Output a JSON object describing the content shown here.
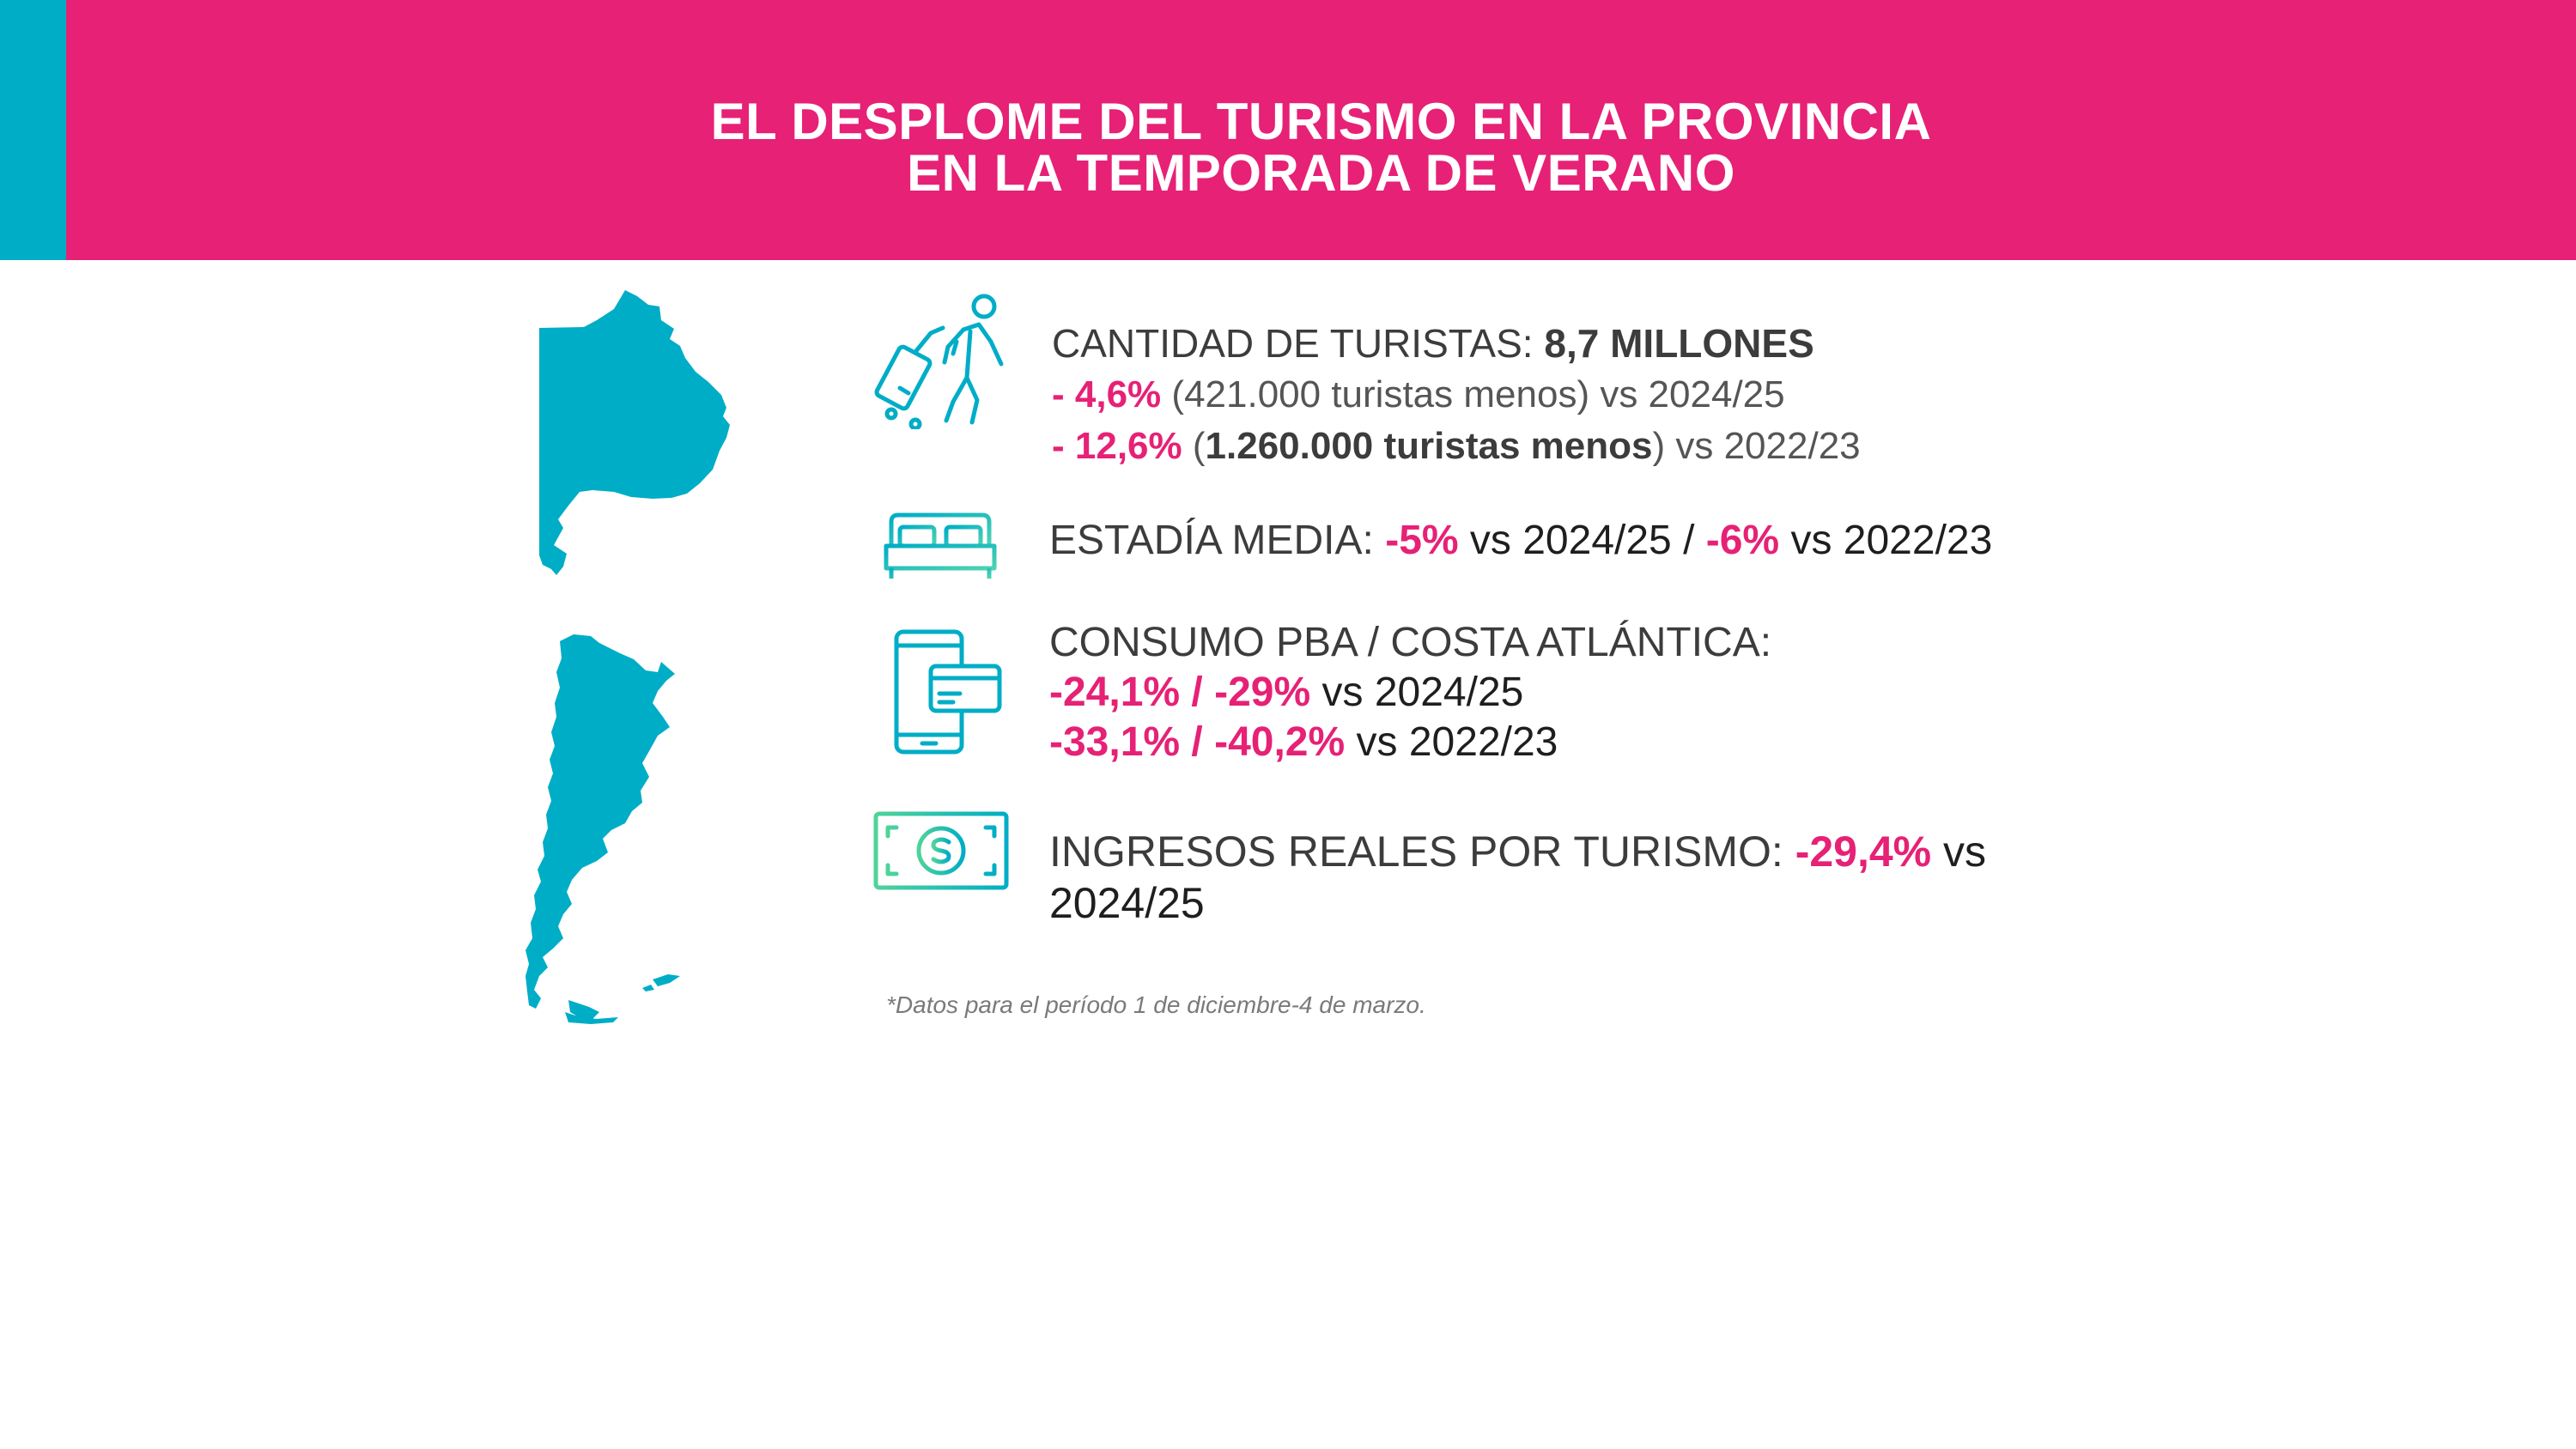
{
  "header": {
    "title_line1": "EL DESPLOME DEL TURISMO EN LA PROVINCIA",
    "title_line2": "EN LA TEMPORADA DE VERANO"
  },
  "maps": {
    "province_icon": "buenos-aires-province-map-icon",
    "country_icon": "argentina-map-icon"
  },
  "stats": {
    "tourists": {
      "icon": "traveler-with-suitcase-icon",
      "label": "CANTIDAD DE TURISTAS: ",
      "value": "8,7 MILLONES",
      "line2_pct": "- 4,6%",
      "line2_open": " (",
      "line2_detail": "421.000 turistas menos",
      "line2_close": ") vs 2024/25",
      "line3_pct": "- 12,6%",
      "line3_open": " (",
      "line3_detail": "1.260.000 turistas menos",
      "line3_close": ") vs 2022/23"
    },
    "stay": {
      "icon": "bed-icon",
      "label": "ESTADÍA MEDIA: ",
      "pct1": "-5%",
      "vs1": " vs 2024/25 / ",
      "pct2": "-6%",
      "vs2": " vs 2022/23"
    },
    "consumption": {
      "icon": "phone-card-payment-icon",
      "label": "CONSUMO PBA / COSTA ATLÁNTICA:",
      "line2_pct": "-24,1% / -29%",
      "line2_vs": " vs 2024/25",
      "line3_pct": "-33,1% / -40,2%",
      "line3_vs": " vs 2022/23"
    },
    "income": {
      "icon": "dollar-bill-icon",
      "label": "INGRESOS REALES POR TURISMO: ",
      "pct": "-29,4%",
      "vs": " vs",
      "year": "2024/25"
    }
  },
  "footnote": "*Datos para el período 1 de diciembre-4 de marzo.",
  "colors": {
    "header_bg": "#e62176",
    "accent": "#00adc6",
    "highlight": "#e62176",
    "text": "#3c3c3c"
  }
}
